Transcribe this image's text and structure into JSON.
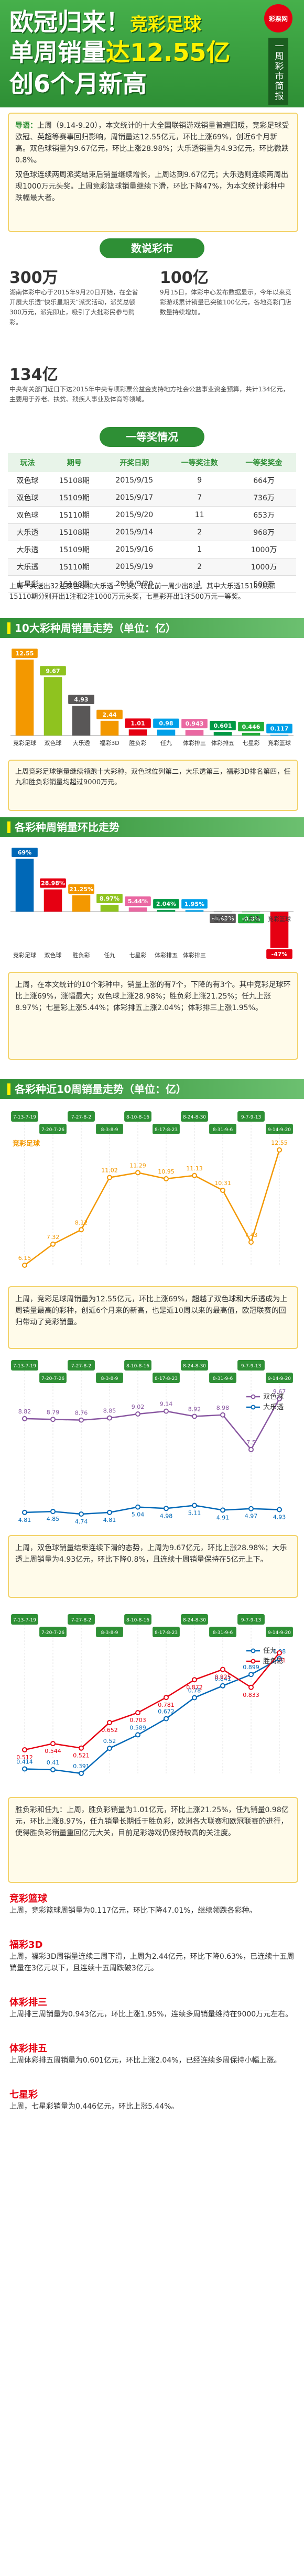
{
  "header": {
    "logo": "彩票网",
    "badge": "一周彩市简报",
    "title_line1a": "欧冠归来！",
    "title_line1b": "竞彩足球",
    "title_line2a": "单周销量",
    "title_line2b": "达12.55亿",
    "title_line3": "创6个月新高"
  },
  "intro": {
    "lead": "导语：",
    "text": "上周（9.14-9.20），本文统计的十大全国联销游戏销量普遍回暖，竞彩足球受欧冠、英超等赛事回归影响，周销量达12.55亿元，环比上涨69%，创近6个月新高。双色球销量为9.67亿元，环比上涨28.98%；大乐透销量为4.93亿元，环比微跌0.8%。",
    "text2": "双色球连续两周派奖结束后销量继续增长，上周达到9.67亿元；大乐透则连续两周出现1000万元头奖。上周竞彩篮球销量继续下滑，环比下降47%，为本文统计彩种中跌幅最大者。"
  },
  "news": {
    "title": "数说彩市",
    "items": [
      {
        "figure": "300万",
        "text": "湖南体彩中心于2015年9月20日开始，在全省开展大乐透“快乐星期天”派奖活动，派奖总额300万元，派完即止，吸引了大批彩民参与购彩。"
      },
      {
        "figure": "100亿",
        "text": "9月15日，体彩中心发布数据显示，今年以来竞彩游戏累计销量已突破100亿元，各地竞彩门店数量持续增加。"
      },
      {
        "figure": "134亿",
        "text": "中央有关部门近日下达2015年中央专项彩票公益金支持地方社会公益事业资金预算，共计134亿元，主要用于养老、扶贫、残疾人事业及体育等领域。"
      }
    ]
  },
  "jackpot": {
    "title": "一等奖情况",
    "table": {
      "header": [
        "玩法",
        "期号",
        "开奖日期",
        "一等奖注数",
        "一等奖奖金"
      ],
      "rows": [
        [
          "双色球",
          "15108期",
          "2015/9/15",
          "9",
          "664万"
        ],
        [
          "双色球",
          "15109期",
          "2015/9/17",
          "7",
          "736万"
        ],
        [
          "双色球",
          "15110期",
          "2015/9/20",
          "11",
          "653万"
        ],
        [
          "大乐透",
          "15108期",
          "2015/9/14",
          "2",
          "968万"
        ],
        [
          "大乐透",
          "15109期",
          "2015/9/16",
          "1",
          "1000万"
        ],
        [
          "大乐透",
          "15110期",
          "2015/9/19",
          "2",
          "1000万"
        ],
        [
          "七星彩",
          "15108期",
          "2015/9/20",
          "1",
          "500万"
        ]
      ]
    },
    "note": "上周一共送出32注双色球和大乐透一等奖，较此前一周少出8注。其中大乐透15109期和15110期分别开出1注和2注1000万元头奖，七星彩开出1注500万元一等奖。"
  },
  "chart_data": [
    {
      "type": "bar",
      "title": "10大彩种周销量走势（单位：亿）",
      "categories": [
        "竞彩足球",
        "双色球",
        "大乐透",
        "福彩3D",
        "胜负彩",
        "任九",
        "体彩排三",
        "体彩排五",
        "七星彩",
        "竞彩篮球"
      ],
      "values": [
        12.55,
        9.67,
        4.93,
        2.44,
        1.01,
        0.98,
        0.943,
        0.601,
        0.446,
        0.117
      ],
      "colors": [
        "#f39800",
        "#8fc31f",
        "#595757",
        "#f39800",
        "#e60012",
        "#00a0e9",
        "#ea68a2",
        "#009944",
        "#22ac38",
        "#00a0e9"
      ],
      "note": "上周竞彩足球销量继续领跑十大彩种，双色球位列第二，大乐透第三，福彩3D排名第四，任九和胜负彩销量均超过9000万元。"
    },
    {
      "type": "bar",
      "title": "各彩种周销量环比走势",
      "categories": [
        "竞彩足球",
        "双色球",
        "胜负彩",
        "任九",
        "七星彩",
        "体彩排五",
        "体彩排三",
        "福彩3D",
        "大乐透",
        "竞彩篮球"
      ],
      "values": [
        69,
        28.98,
        21.25,
        8.97,
        5.44,
        2.04,
        1.95,
        -0.63,
        -0.8,
        -47
      ],
      "value_labels": [
        "69%",
        "28.98%",
        "21.25%",
        "8.97%",
        "5.44%",
        "2.04%",
        "1.95%",
        "-0.63%",
        "-0.8%",
        "-47%"
      ],
      "colors": [
        "#0068b7",
        "#e60012",
        "#f39800",
        "#8fc31f",
        "#ea68a2",
        "#009944",
        "#00a0e9",
        "#595757",
        "#22ac38",
        "#e60012"
      ],
      "note": "上周，在本文统计的10个彩种中，销量上涨的有7个，下降的有3个。其中竞彩足球环比上涨69%，涨幅最大；双色球上涨28.98%；胜负彩上涨21.25%；任九上涨8.97%；七星彩上涨5.44%；体彩排五上涨2.04%；体彩排三上涨1.95%。"
    },
    {
      "type": "line",
      "title": "各彩种近10周销量走势（单位：亿）",
      "x": [
        "7-13-7-19",
        "7-20-7-26",
        "7-27-8-2",
        "8-3-8-9",
        "8-10-8-16",
        "8-17-8-23",
        "8-24-8-30",
        "8-31-9-6",
        "9-7-9-13",
        "9-14-9-20"
      ],
      "series": [
        {
          "name": "竞彩足球",
          "color": "#f39800",
          "values": [
            6.15,
            7.32,
            8.12,
            11.02,
            11.29,
            10.95,
            11.13,
            10.31,
            7.43,
            12.55
          ]
        }
      ],
      "note": "上周，竞彩足球周销量为12.55亿元，环比上涨69%，超越了双色球和大乐透成为上周销量最高的彩种，创近6个月来的新高，也是近10周以来的最高值，欧冠联赛的回归带动了竞彩销量。"
    },
    {
      "type": "line",
      "x": [
        "7-13-7-19",
        "7-20-7-26",
        "7-27-8-2",
        "8-3-8-9",
        "8-10-8-16",
        "8-17-8-23",
        "8-24-8-30",
        "8-31-9-6",
        "9-7-9-13",
        "9-14-9-20"
      ],
      "series": [
        {
          "name": "双色球",
          "color": "#8957a1",
          "values": [
            8.82,
            8.79,
            8.76,
            8.85,
            9.02,
            9.14,
            8.92,
            8.98,
            7.5,
            9.67
          ]
        },
        {
          "name": "大乐透",
          "color": "#0068b7",
          "values": [
            4.81,
            4.85,
            4.74,
            4.81,
            5.04,
            4.98,
            5.11,
            4.91,
            4.97,
            4.93
          ]
        }
      ],
      "note": "上周，双色球销量结束连续下滑的态势，上周为9.67亿元，环比上涨28.98%；大乐透上周销量为4.93亿元，环比下降0.8%，且连续十周销量保持在5亿元上下。"
    },
    {
      "type": "line",
      "x": [
        "7-13-7-19",
        "7-20-7-26",
        "7-27-8-2",
        "8-3-8-9",
        "8-10-8-16",
        "8-17-8-23",
        "8-24-8-30",
        "8-31-9-6",
        "9-7-9-13",
        "9-14-9-20"
      ],
      "series": [
        {
          "name": "任九",
          "color": "#0068b7",
          "values": [
            0.414,
            0.41,
            0.391,
            0.52,
            0.589,
            0.672,
            0.78,
            0.841,
            0.899,
            0.98
          ]
        },
        {
          "name": "胜负彩",
          "color": "#e60012",
          "values": [
            0.512,
            0.544,
            0.521,
            0.652,
            0.703,
            0.781,
            0.872,
            0.925,
            0.833,
            1.01
          ]
        }
      ],
      "note": "胜负彩和任九：上周，胜负彩销量为1.01亿元，环比上涨21.25%，任九销量0.98亿元，环比上涨8.97%，任九销量长期低于胜负彩，欧洲各大联赛和欧冠联赛的进行，使得胜负彩销量重回亿元大关，目前足彩游戏仍保持较高的关注度。"
    }
  ],
  "analysis": [
    {
      "title": "竞彩篮球",
      "text": "上周，竞彩篮球周销量为0.117亿元，环比下降47.01%，继续领跌各彩种。"
    },
    {
      "title": "福彩3D",
      "text": "上周，福彩3D周销量连续三周下滑，上周为2.44亿元，环比下降0.63%，已连续十五周销量在3亿元以下，且连续十五周跌破3亿元。"
    },
    {
      "title": "体彩排三",
      "text": "上周排三周销量为0.943亿元，环比上涨1.95%，连续多周销量维持在9000万元左右。"
    },
    {
      "title": "体彩排五",
      "text": "上周体彩排五周销量为0.601亿元，环比上涨2.04%，已经连续多周保持小幅上涨。"
    },
    {
      "title": "七星彩",
      "text": "上周，七星彩销量为0.446亿元，环比上涨5.44%。"
    }
  ]
}
